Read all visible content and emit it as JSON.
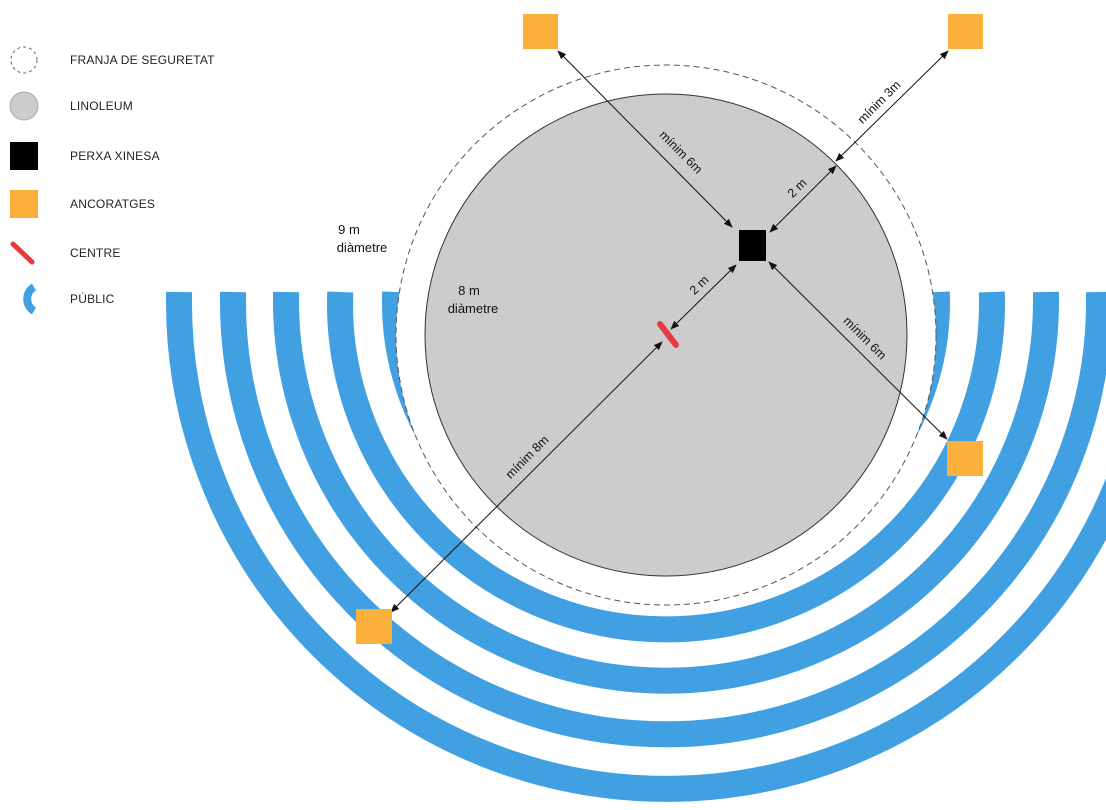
{
  "legend": {
    "items": [
      {
        "key": "safety",
        "label": "FRANJA DE SEGURETAT",
        "icon": "dashed-circle-icon"
      },
      {
        "key": "linoleum",
        "label": "LINOLEUM",
        "icon": "gray-circle-icon"
      },
      {
        "key": "pole",
        "label": "PERXA XINESA",
        "icon": "black-square-icon"
      },
      {
        "key": "anchors",
        "label": "ANCORATGES",
        "icon": "orange-square-icon"
      },
      {
        "key": "center",
        "label": "CENTRE",
        "icon": "red-dash-icon"
      },
      {
        "key": "audience",
        "label": "PÚBLIC",
        "icon": "blue-arc-icon"
      }
    ]
  },
  "labels": {
    "outer_diameter_value": "9 m",
    "outer_diameter_word": "diàmetre",
    "inner_diameter_value": "8 m",
    "inner_diameter_word": "diàmetre",
    "min_6m_top": "mínim 6m",
    "min_3m": "mínim 3m",
    "two_m_ne": "2 m",
    "two_m_center": "2 m",
    "min_6m_right": "mínim  6m",
    "min_8m": "mínim 8m"
  },
  "colors": {
    "linoleum": "#cccccc",
    "pole": "#000000",
    "anchor": "#fbb03b",
    "center": "#e53a40",
    "audience": "#41a0e2",
    "lines": "#111111",
    "safety": "#555555"
  }
}
